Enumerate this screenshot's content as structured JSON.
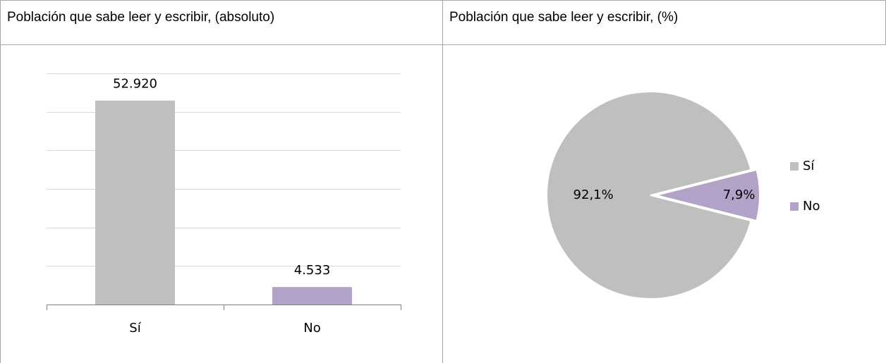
{
  "chart_data": [
    {
      "type": "bar",
      "title": "Población que sabe leer y escribir, (absoluto)",
      "categories": [
        "Sí",
        "No"
      ],
      "values": [
        52920,
        4533
      ],
      "value_labels": [
        "52.920",
        "4.533"
      ],
      "colors": [
        "#bfbfbf",
        "#b3a2c7"
      ],
      "ylim": [
        0,
        60000
      ],
      "yticks": [
        0,
        10000,
        20000,
        30000,
        40000,
        50000,
        60000
      ],
      "grid": true
    },
    {
      "type": "pie",
      "title": "Población que sabe leer y escribir, (%)",
      "categories": [
        "Sí",
        "No"
      ],
      "values": [
        92.1,
        7.9
      ],
      "value_labels": [
        "92,1%",
        "7,9%"
      ],
      "colors": [
        "#bfbfbf",
        "#b3a2c7"
      ],
      "legend": "right"
    }
  ]
}
